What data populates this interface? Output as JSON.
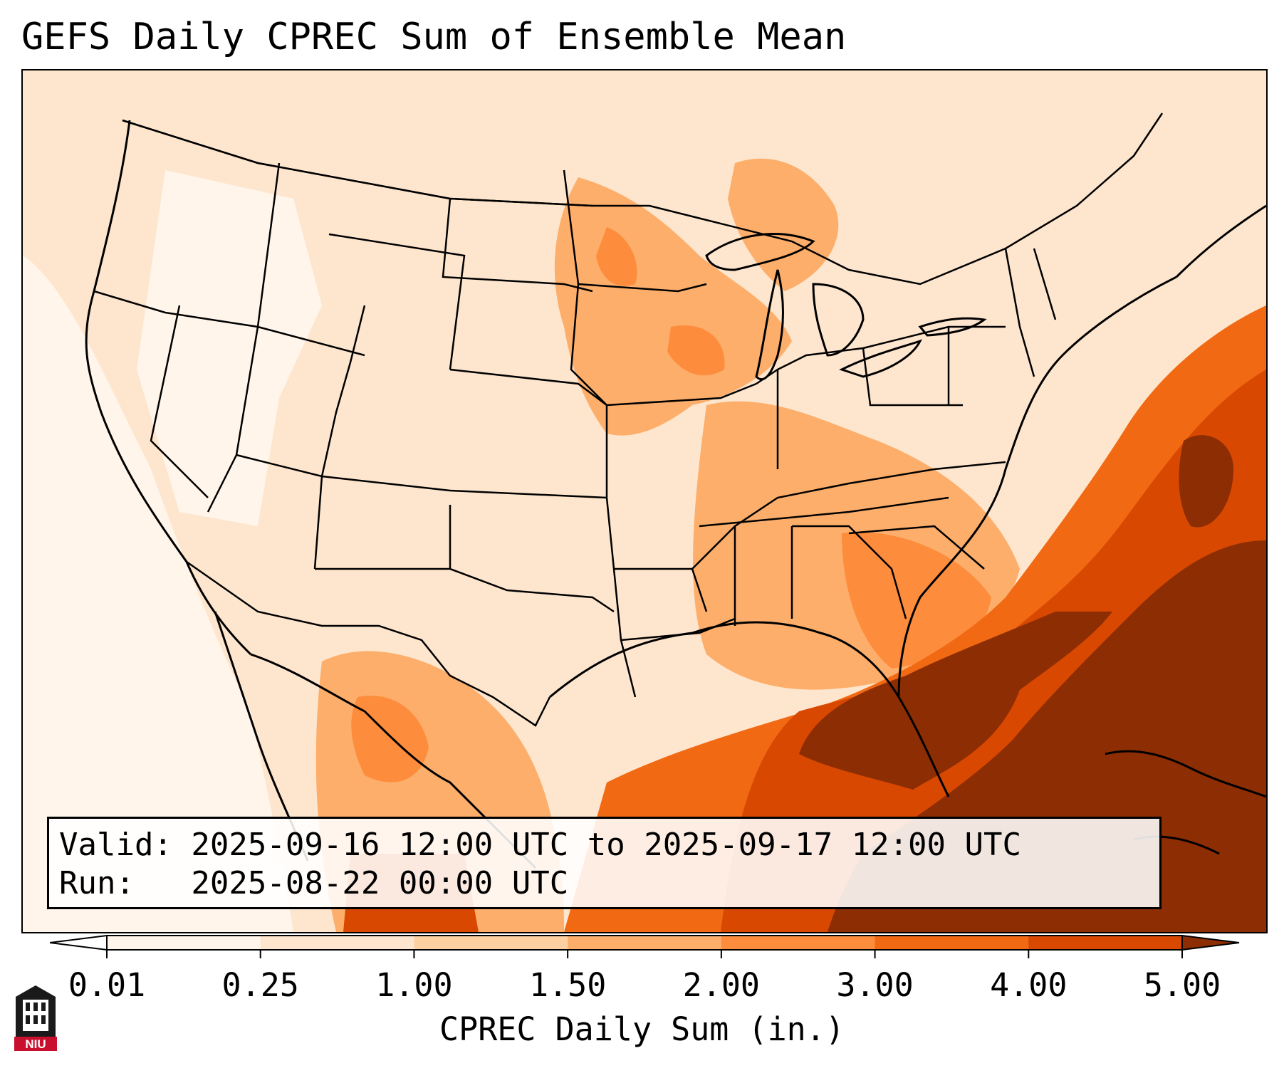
{
  "title": "GEFS Daily CPREC Sum of Ensemble Mean",
  "info": {
    "valid_line": "Valid: 2025-09-16 12:00 UTC to 2025-09-17 12:00 UTC",
    "run_line": "Run:   2025-08-22 00:00 UTC"
  },
  "colorbar": {
    "label": "CPREC Daily Sum (in.)",
    "tick_labels": [
      "0.01",
      "0.25",
      "1.00",
      "1.50",
      "2.00",
      "3.00",
      "4.00",
      "5.00"
    ],
    "bins": [
      {
        "color": "#fff5eb"
      },
      {
        "color": "#fee6ce"
      },
      {
        "color": "#fdd0a2"
      },
      {
        "color": "#fdae6b"
      },
      {
        "color": "#fd8d3c"
      },
      {
        "color": "#f16913"
      },
      {
        "color": "#d94801"
      }
    ],
    "under_color": "#ffffff",
    "over_color": "#8c2d04"
  },
  "colors": {
    "lightest": "#fff5eb",
    "light": "#fee6ce",
    "medium_light": "#fdd0a2",
    "medium": "#fdae6b",
    "medium_dark": "#fd8d3c",
    "dark": "#f16913",
    "darker": "#d94801",
    "darkest": "#8c2d04"
  },
  "logo": {
    "text": "NIU",
    "icon": "university-building-icon"
  }
}
